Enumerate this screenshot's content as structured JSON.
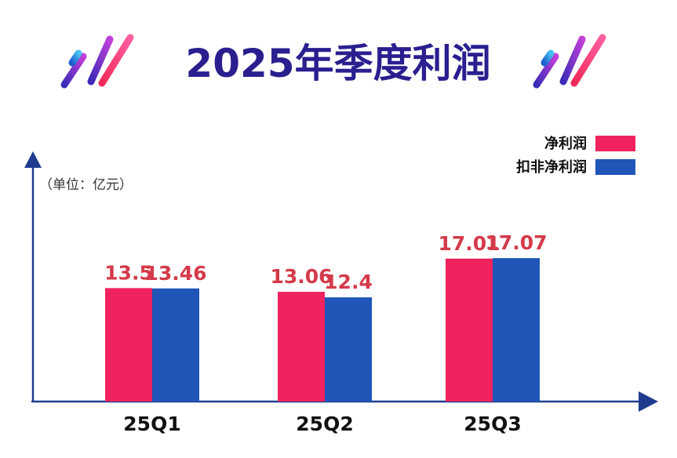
{
  "header": {
    "title": "2025年季度利润"
  },
  "colors": {
    "title": "#2a1f8f",
    "axis": "#1f3c8f",
    "net_profit": "#f0235f",
    "non_gaap_profit": "#1f56b8",
    "value_label": "#d43a4a"
  },
  "chart_data": {
    "type": "bar",
    "title": "2025年季度利润",
    "unit_label": "（单位：亿元）",
    "categories": [
      "25Q1",
      "25Q2",
      "25Q3"
    ],
    "series": [
      {
        "name": "净利润",
        "values": [
          13.5,
          13.06,
          17.01
        ],
        "labels": [
          "13.5",
          "13.06",
          "17.01"
        ]
      },
      {
        "name": "扣非净利润",
        "values": [
          13.46,
          12.4,
          17.07
        ],
        "labels": [
          "13.46",
          "12.4",
          "17.07"
        ]
      }
    ],
    "ylim": [
      0,
      28
    ],
    "grid": false,
    "legend": "top-right"
  }
}
